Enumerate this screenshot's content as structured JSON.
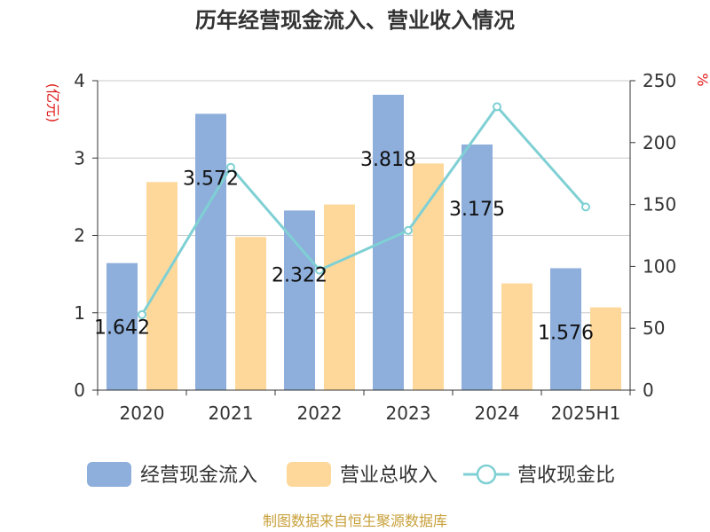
{
  "chart_data": {
    "type": "bar",
    "title": "历年经营现金流入、营业收入情况",
    "categories": [
      "2020",
      "2021",
      "2022",
      "2023",
      "2024",
      "2025H1"
    ],
    "left_axis": {
      "unit": "(亿元)",
      "ylim": [
        0,
        4
      ],
      "ticks": [
        "0",
        "1",
        "2",
        "3",
        "4"
      ]
    },
    "right_axis": {
      "unit": "%",
      "ylim": [
        0,
        250
      ],
      "ticks": [
        "0",
        "50",
        "100",
        "150",
        "200",
        "250"
      ]
    },
    "series": [
      {
        "name": "经营现金流入",
        "type": "bar",
        "axis": "left",
        "color": "#8eaedb",
        "values": [
          1.642,
          3.572,
          2.322,
          3.818,
          3.175,
          1.576
        ],
        "labels": [
          "1.642",
          "3.572",
          "2.322",
          "3.818",
          "3.175",
          "1.576"
        ]
      },
      {
        "name": "营业总收入",
        "type": "bar",
        "axis": "left",
        "color": "#fdd89a",
        "values": [
          2.69,
          1.98,
          2.4,
          2.93,
          1.38,
          1.07
        ]
      },
      {
        "name": "营收现金比",
        "type": "line",
        "axis": "right",
        "color": "#7fd0d4",
        "values": [
          61,
          180,
          97,
          129,
          229,
          148
        ]
      }
    ],
    "legend_position": "bottom",
    "grid": true
  },
  "source": "制图数据来自恒生聚源数据库"
}
